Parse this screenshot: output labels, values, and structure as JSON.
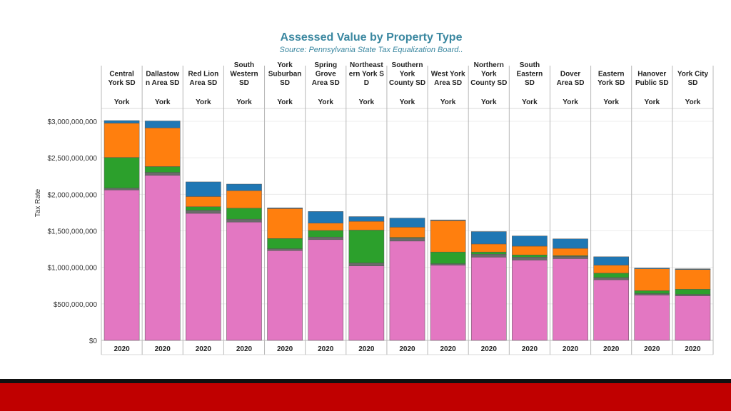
{
  "colors": {
    "pink": "#e377c2",
    "gray": "#6b6b6b",
    "green": "#2ca02c",
    "orange": "#ff7f0e",
    "blue": "#1f77b4",
    "title": "#3a87a0",
    "footer_red": "#c00000"
  },
  "chart_data": {
    "type": "bar",
    "stacked": true,
    "title": "Assessed Value by Property Type",
    "subtitle": "Source: Pennsylvania State Tax Equalization Board..",
    "ylabel": "Tax Rate",
    "ylim": [
      0,
      3000000000
    ],
    "yticks": [
      {
        "value": 0,
        "label": "$0"
      },
      {
        "value": 500000000,
        "label": "$500,000,000"
      },
      {
        "value": 1000000000,
        "label": "$1,000,000,000"
      },
      {
        "value": 1500000000,
        "label": "$1,500,000,000"
      },
      {
        "value": 2000000000,
        "label": "$2,000,000,000"
      },
      {
        "value": 2500000000,
        "label": "$2,500,000,000"
      },
      {
        "value": 3000000000,
        "label": "$3,000,000,000"
      }
    ],
    "year": "2020",
    "county": "York",
    "districts": [
      {
        "name_lines": [
          "Central",
          "York SD"
        ],
        "segments": [
          2060000000,
          25000000,
          420000000,
          470000000,
          35000000
        ]
      },
      {
        "name_lines": [
          "Dallastow",
          "n Area SD"
        ],
        "segments": [
          2260000000,
          40000000,
          80000000,
          530000000,
          95000000
        ]
      },
      {
        "name_lines": [
          "Red Lion",
          "Area SD"
        ],
        "segments": [
          1740000000,
          40000000,
          50000000,
          140000000,
          200000000
        ]
      },
      {
        "name_lines": [
          "South",
          "Western",
          "SD"
        ],
        "segments": [
          1620000000,
          40000000,
          150000000,
          240000000,
          90000000
        ]
      },
      {
        "name_lines": [
          "York",
          "Suburban",
          "SD"
        ],
        "segments": [
          1230000000,
          25000000,
          140000000,
          410000000,
          10000000
        ]
      },
      {
        "name_lines": [
          "Spring",
          "Grove",
          "Area SD"
        ],
        "segments": [
          1380000000,
          35000000,
          90000000,
          100000000,
          160000000
        ]
      },
      {
        "name_lines": [
          "Northeast",
          "ern York S",
          "D"
        ],
        "segments": [
          1020000000,
          40000000,
          450000000,
          120000000,
          65000000
        ]
      },
      {
        "name_lines": [
          "Southern",
          "York",
          "County SD"
        ],
        "segments": [
          1360000000,
          40000000,
          10000000,
          140000000,
          125000000
        ]
      },
      {
        "name_lines": [
          "West York",
          "Area SD"
        ],
        "segments": [
          1030000000,
          20000000,
          160000000,
          430000000,
          10000000
        ]
      },
      {
        "name_lines": [
          "Northern",
          "York",
          "County SD"
        ],
        "segments": [
          1140000000,
          40000000,
          30000000,
          110000000,
          170000000
        ]
      },
      {
        "name_lines": [
          "South",
          "Eastern",
          "SD"
        ],
        "segments": [
          1100000000,
          40000000,
          30000000,
          120000000,
          140000000
        ]
      },
      {
        "name_lines": [
          "Dover",
          "Area SD"
        ],
        "segments": [
          1120000000,
          30000000,
          10000000,
          100000000,
          130000000
        ]
      },
      {
        "name_lines": [
          "Eastern",
          "York SD"
        ],
        "segments": [
          830000000,
          30000000,
          60000000,
          110000000,
          115000000
        ]
      },
      {
        "name_lines": [
          "Hanover",
          "Public SD"
        ],
        "segments": [
          620000000,
          20000000,
          40000000,
          300000000,
          10000000
        ]
      },
      {
        "name_lines": [
          "York City",
          "SD"
        ],
        "segments": [
          610000000,
          20000000,
          70000000,
          270000000,
          10000000
        ]
      }
    ]
  }
}
